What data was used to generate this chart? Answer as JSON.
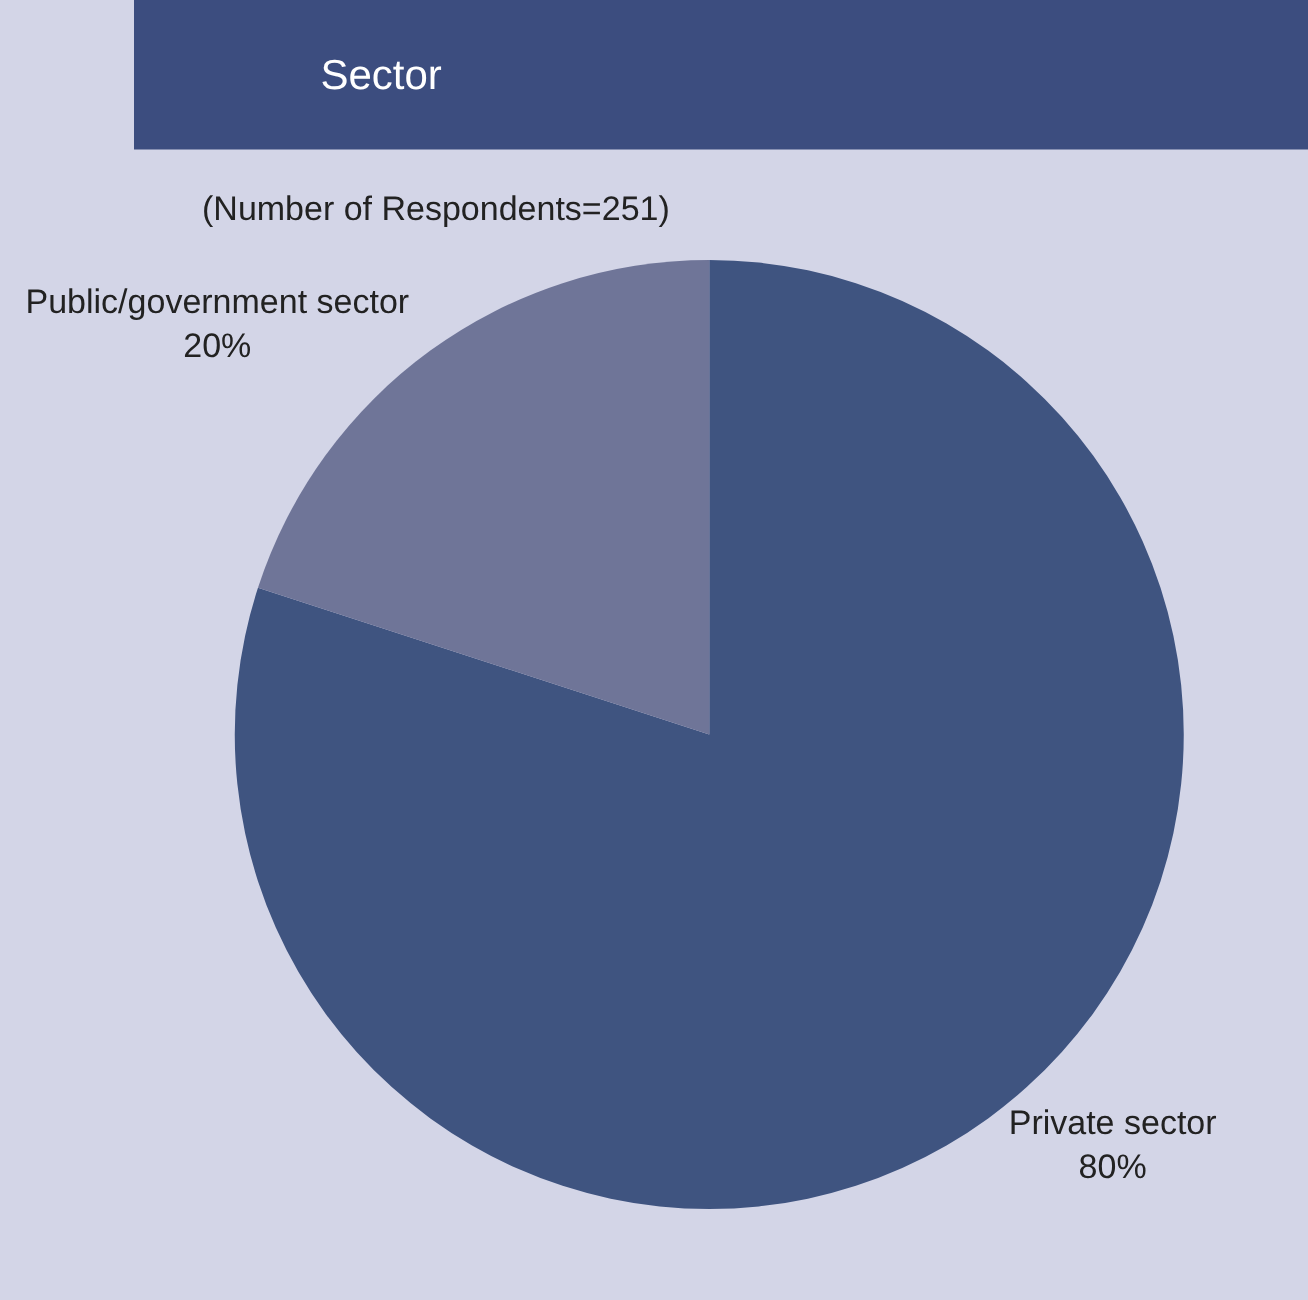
{
  "chart_data": {
    "type": "pie",
    "title": "Sector",
    "subtitle": "(Number of Respondents=251)",
    "categories": [
      "Private sector",
      "Public/government sector"
    ],
    "values": [
      80,
      20
    ],
    "value_labels": [
      "80%",
      "20%"
    ],
    "colors": [
      "#3f5480",
      "#6f7598"
    ],
    "legend": false
  }
}
